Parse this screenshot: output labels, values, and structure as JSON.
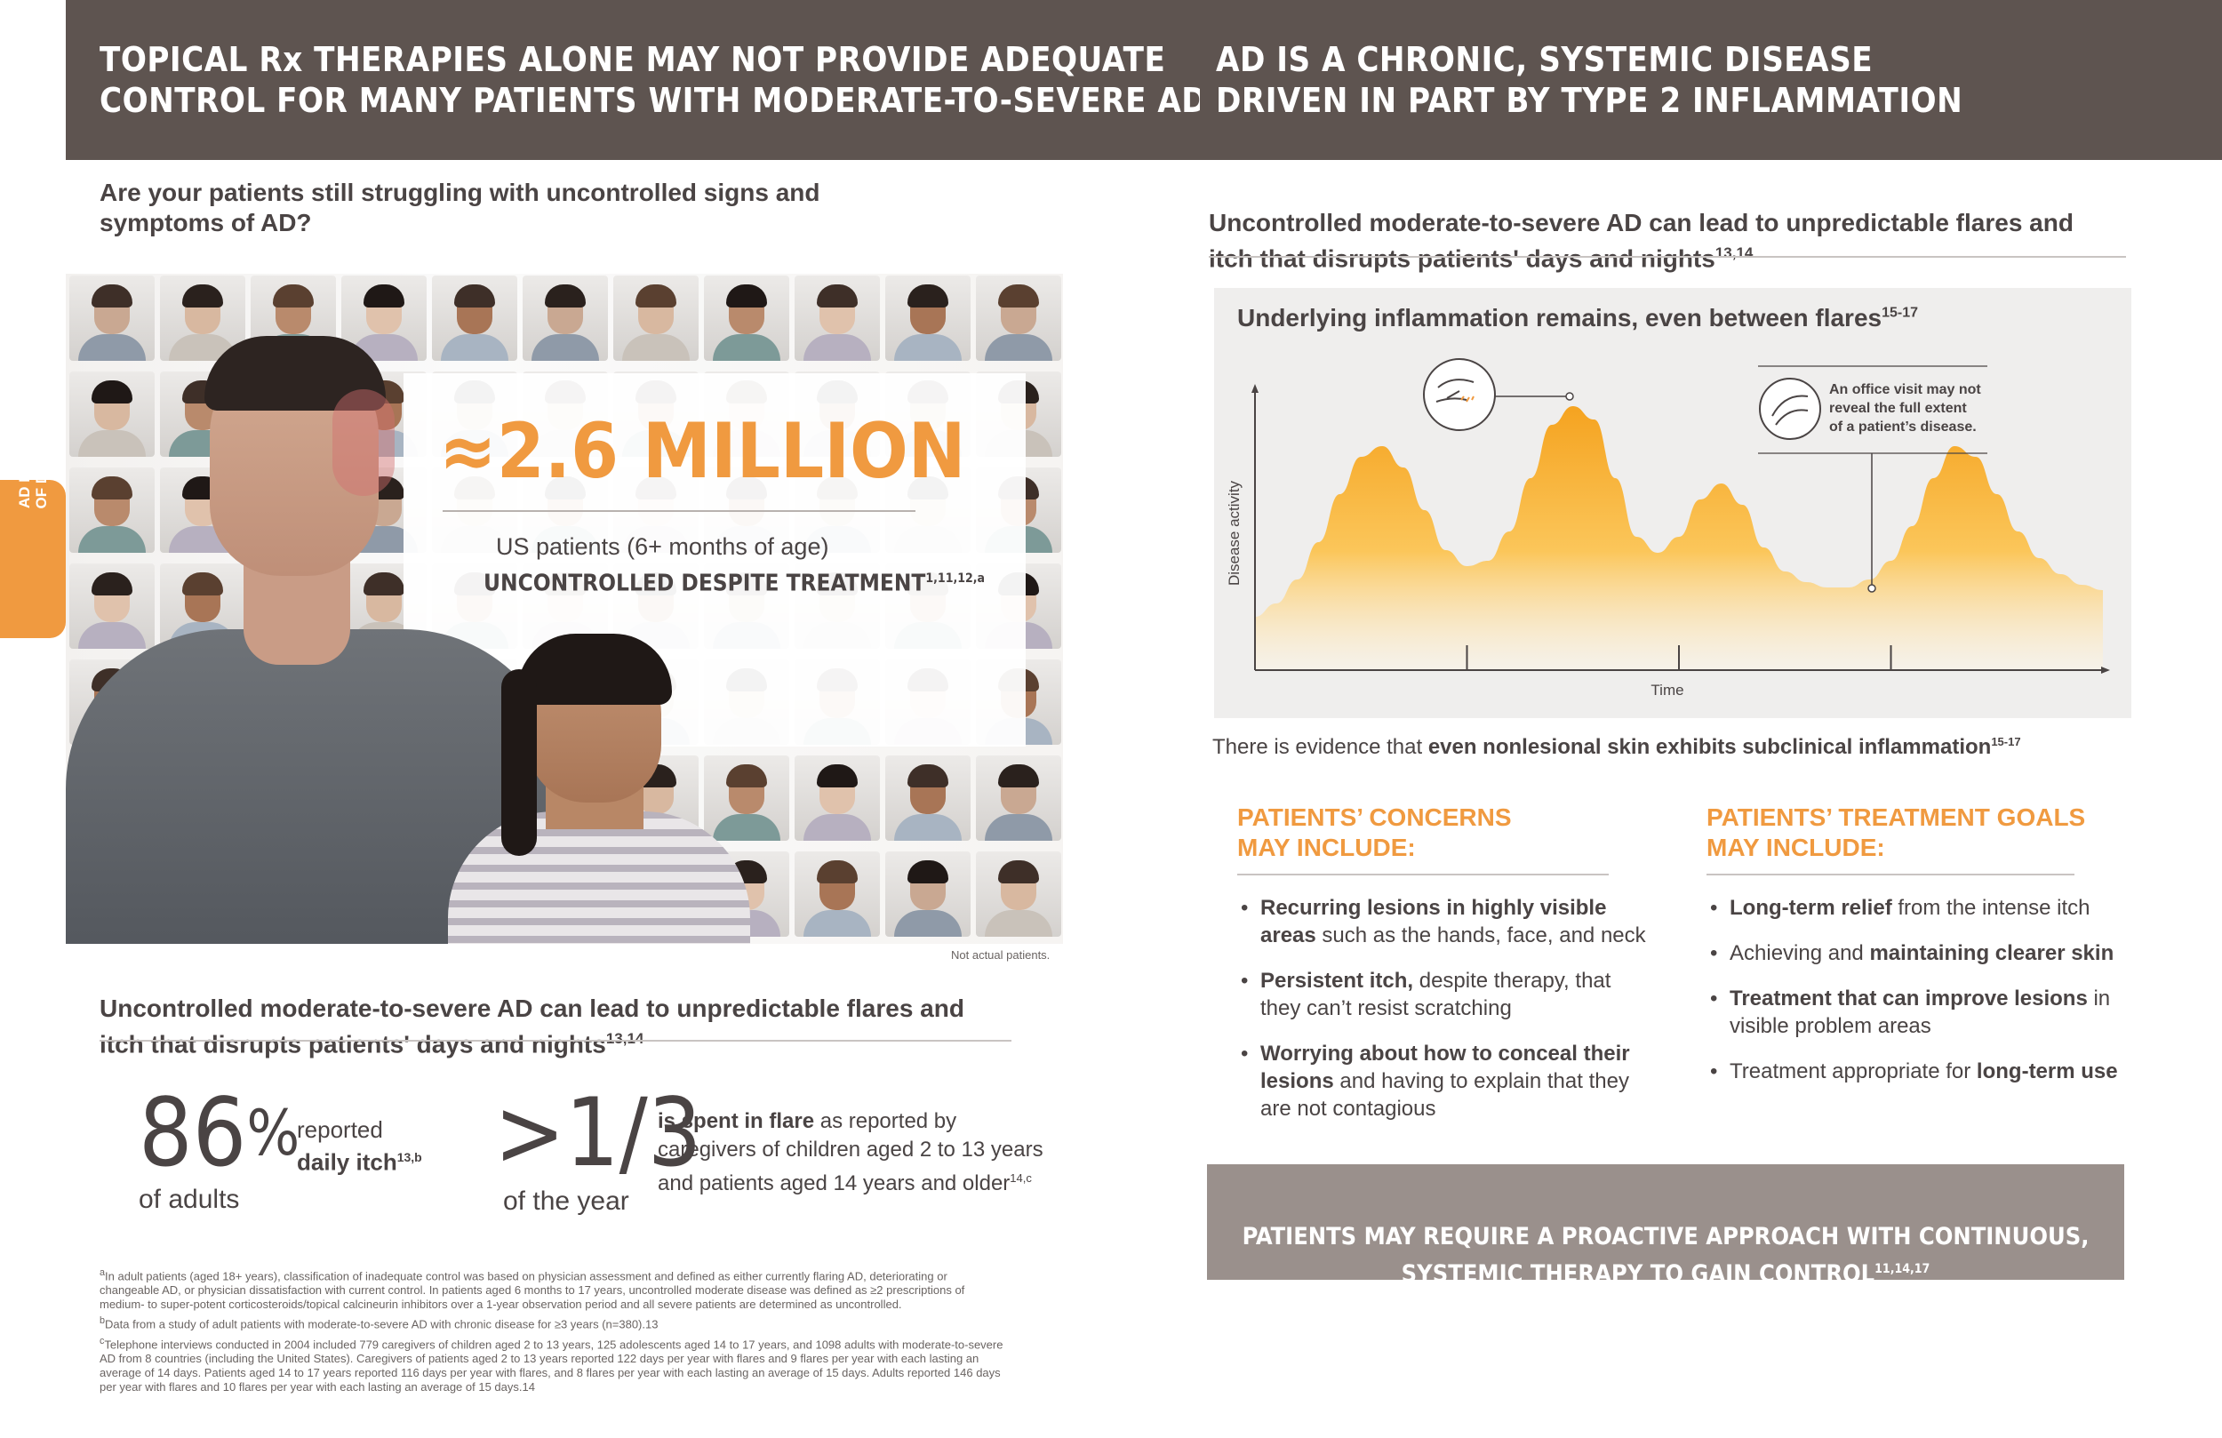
{
  "colors": {
    "header_bg": "#5e5450",
    "accent": "#f09a40",
    "banner_bg": "#9a908c"
  },
  "left": {
    "header": "TOPICAL Rx THERAPIES ALONE MAY NOT PROVIDE ADEQUATE\nCONTROL FOR MANY PATIENTS WITH MODERATE-TO-SEVERE AD",
    "question": "Are your patients still struggling with uncontrolled signs and\nsymptoms of AD?",
    "side_tab": [
      "AD BURDEN",
      "OF DISEASE"
    ],
    "million": "≈2.6 MILLION",
    "us_patients": "US patients (6+ months of age)",
    "uncontrolled": "UNCONTROLLED DESPITE TREATMENT",
    "uncontrolled_sup": "1,11,12,a",
    "not_actual": "Not actual patients.",
    "subhead2": "Uncontrolled moderate-to-severe AD can lead to unpredictable flares and\nitch that disrupts patients' days and nights",
    "subhead2_sup": "13,14",
    "stat1": {
      "number": "86",
      "pct": "%",
      "line1": "reported",
      "line2": "daily itch",
      "sup": "13,b",
      "caption": "of adults"
    },
    "stat2": {
      "number": ">1/3",
      "caption": "of the year",
      "bold": "is spent in flare",
      "rest1": " as reported by",
      "line2": "caregivers of children aged 2 to 13 years",
      "line3": "and patients aged 14 years and older",
      "sup": "14,c"
    },
    "footnotes": [
      {
        "mark": "a",
        "text": "In adult patients (aged 18+ years), classification of inadequate control was based on physician assessment and defined as either currently flaring AD, deteriorating or changeable AD, or physician dissatisfaction with current control. In patients aged 6 months to 17 years, uncontrolled moderate disease was defined as ≥2 prescriptions of medium- to super-potent corticosteroids/topical calcineurin inhibitors over a 1-year observation period and all severe patients are determined as uncontrolled."
      },
      {
        "mark": "b",
        "text": "Data from a study of adult patients with moderate-to-severe AD with chronic disease for ≥3 years (n=380).13"
      },
      {
        "mark": "c",
        "text": "Telephone interviews conducted in 2004 included 779 caregivers of children aged 2 to 13 years, 125 adolescents aged 14 to 17 years, and 1098 adults with moderate-to-severe AD from 8 countries (including the United States). Caregivers of patients aged 2 to 13 years reported 122 days per year with flares and 9 flares per year with each lasting an average of 14 days. Patients aged 14 to 17 years reported 116 days per year with flares, and 8 flares per year with each lasting an average of 15 days. Adults reported 146 days per year with flares and 10 flares per year with each lasting an average of 15 days.14"
      }
    ]
  },
  "right": {
    "header": "AD IS A CHRONIC, SYSTEMIC DISEASE\nDRIVEN IN PART BY TYPE 2 INFLAMMATION",
    "subhead": "Uncontrolled moderate-to-severe AD can lead to unpredictable flares and\nitch that disrupts patients' days and nights",
    "subhead_sup": "13,14",
    "chart_title": "Underlying inflammation remains, even between flares",
    "chart_title_sup": "15-17",
    "callout": "An office visit may not\nreveal the full extent\nof a patient’s disease.",
    "evidence_plain": "There is evidence that ",
    "evidence_bold": "even nonlesional skin exhibits subclinical inflammation",
    "evidence_sup": "15-17",
    "concerns_title": "PATIENTS’ CONCERNS\nMAY INCLUDE:",
    "concerns": [
      {
        "bold": "Recurring lesions in highly visible areas",
        "rest": " such as the hands, face, and neck"
      },
      {
        "bold": "Persistent itch,",
        "rest": " despite therapy, that they can’t resist scratching"
      },
      {
        "bold": "Worrying about how to conceal their lesions",
        "rest": " and having to explain that they are not contagious"
      }
    ],
    "goals_title": "PATIENTS’ TREATMENT GOALS\nMAY INCLUDE:",
    "goals": [
      {
        "pre": "",
        "bold": "Long-term relief",
        "rest": " from the intense itch"
      },
      {
        "pre": "Achieving and ",
        "bold": "maintaining clearer skin",
        "rest": ""
      },
      {
        "pre": "",
        "bold": "Treatment that can improve lesions",
        "rest": " in visible problem areas"
      },
      {
        "pre": "Treatment appropriate for ",
        "bold": "long-term use",
        "rest": ""
      }
    ],
    "banner": "PATIENTS MAY REQUIRE A PROACTIVE APPROACH WITH CONTINUOUS,\nSYSTEMIC THERAPY TO GAIN CONTROL",
    "banner_sup": "11,14,17"
  },
  "chart_data": {
    "type": "area",
    "title": "Underlying inflammation remains, even between flares",
    "xlabel": "Time",
    "ylabel": "Disease activity",
    "x": [
      0,
      1,
      2,
      3,
      4,
      5,
      6,
      7,
      8,
      9,
      10,
      11,
      12,
      13,
      14,
      15,
      16,
      17,
      18,
      19,
      20,
      21,
      22,
      23,
      24,
      25,
      26,
      27,
      28,
      29,
      30,
      31,
      32,
      33,
      34,
      35,
      36,
      37,
      38,
      39,
      40
    ],
    "values": [
      0.2,
      0.25,
      0.34,
      0.48,
      0.66,
      0.8,
      0.84,
      0.76,
      0.6,
      0.45,
      0.39,
      0.41,
      0.52,
      0.72,
      0.92,
      0.99,
      0.94,
      0.72,
      0.5,
      0.44,
      0.5,
      0.64,
      0.7,
      0.62,
      0.46,
      0.37,
      0.33,
      0.31,
      0.31,
      0.34,
      0.41,
      0.54,
      0.72,
      0.84,
      0.8,
      0.66,
      0.52,
      0.42,
      0.36,
      0.32,
      0.3
    ],
    "xlim": [
      0,
      40
    ],
    "ylim": [
      0,
      1.1
    ],
    "x_ticks": [
      10,
      20,
      30
    ],
    "y_ticks": []
  }
}
